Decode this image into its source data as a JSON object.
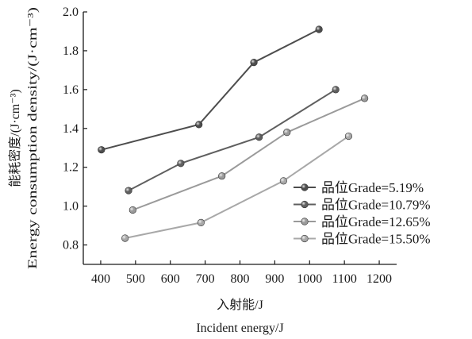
{
  "chart_data": {
    "type": "line",
    "xlabel_cn": "入射能/J",
    "xlabel_en": "Incident energy/J",
    "ylabel_cn": "能耗密度/(J·cm⁻³)",
    "ylabel_en": "Energy consumption density/(J·cm⁻³)",
    "xlim": [
      350,
      1250
    ],
    "ylim": [
      0.7,
      2.0
    ],
    "xticks": [
      "400",
      "500",
      "600",
      "700",
      "800",
      "900",
      "1000",
      "1100",
      "1200"
    ],
    "yticks": [
      "0.8",
      "1.0",
      "1.2",
      "1.4",
      "1.6",
      "1.8",
      "2.0"
    ],
    "legend_position": "lower-right",
    "grid": false,
    "series": [
      {
        "name": "品位Grade=5.19%",
        "color": "#4d4d4d",
        "points": [
          [
            402,
            1.29
          ],
          [
            682,
            1.42
          ],
          [
            840,
            1.74
          ],
          [
            1027,
            1.91
          ]
        ]
      },
      {
        "name": "品位Grade=10.79%",
        "color": "#5f5f5f",
        "points": [
          [
            480,
            1.08
          ],
          [
            630,
            1.22
          ],
          [
            855,
            1.355
          ],
          [
            1075,
            1.6
          ]
        ]
      },
      {
        "name": "品位Grade=12.65%",
        "color": "#9a9a9a",
        "points": [
          [
            492,
            0.98
          ],
          [
            748,
            1.155
          ],
          [
            935,
            1.38
          ],
          [
            1158,
            1.555
          ]
        ]
      },
      {
        "name": "品位Grade=15.50%",
        "color": "#a8a8a8",
        "points": [
          [
            470,
            0.835
          ],
          [
            688,
            0.915
          ],
          [
            925,
            1.13
          ],
          [
            1112,
            1.36
          ]
        ]
      }
    ]
  }
}
